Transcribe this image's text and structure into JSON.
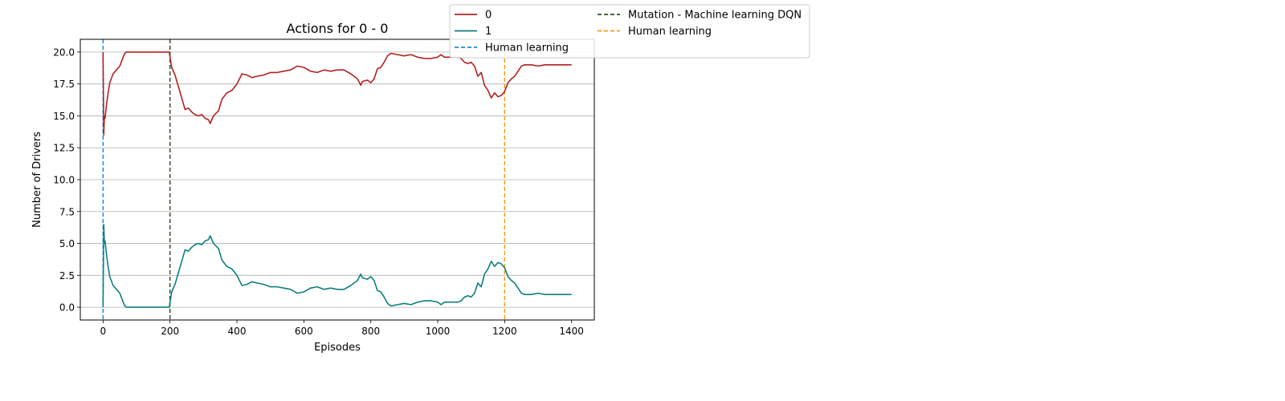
{
  "chart_data": {
    "type": "line",
    "title": "Actions for 0 - 0",
    "xlabel": "Episodes",
    "ylabel": "Number of Drivers",
    "xlim": [
      -68,
      1468
    ],
    "ylim": [
      -1.0,
      21.0
    ],
    "xticks": [
      0,
      200,
      400,
      600,
      800,
      1000,
      1200,
      1400
    ],
    "xtick_labels": [
      "0",
      "200",
      "400",
      "600",
      "800",
      "1000",
      "1200",
      "1400"
    ],
    "yticks": [
      0.0,
      2.5,
      5.0,
      7.5,
      10.0,
      12.5,
      15.0,
      17.5,
      20.0
    ],
    "ytick_labels": [
      "0.0",
      "2.5",
      "5.0",
      "7.5",
      "10.0",
      "12.5",
      "15.0",
      "17.5",
      "20.0"
    ],
    "grid": "horizontal",
    "legend_position": "top-right, outside plot",
    "series": [
      {
        "name": "0",
        "color": "#b22222",
        "x": [
          0,
          2,
          4,
          6,
          10,
          15,
          20,
          30,
          40,
          50,
          60,
          65,
          70,
          80,
          100,
          150,
          198,
          200,
          205,
          215,
          225,
          235,
          245,
          255,
          265,
          275,
          285,
          295,
          305,
          315,
          320,
          330,
          345,
          355,
          370,
          385,
          400,
          415,
          430,
          445,
          460,
          480,
          500,
          520,
          540,
          560,
          580,
          600,
          620,
          640,
          660,
          680,
          700,
          720,
          740,
          760,
          770,
          775,
          790,
          800,
          810,
          820,
          830,
          840,
          850,
          860,
          880,
          900,
          920,
          940,
          960,
          980,
          1000,
          1010,
          1020,
          1040,
          1060,
          1070,
          1080,
          1090,
          1100,
          1110,
          1120,
          1130,
          1140,
          1150,
          1160,
          1170,
          1180,
          1190,
          1200,
          1210,
          1220,
          1230,
          1240,
          1250,
          1260,
          1280,
          1300,
          1320,
          1340,
          1360,
          1380,
          1400
        ],
        "y": [
          20.0,
          13.5,
          15.0,
          14.8,
          15.8,
          16.8,
          17.6,
          18.3,
          18.6,
          18.9,
          19.6,
          19.9,
          20.0,
          20.0,
          20.0,
          20.0,
          20.0,
          19.6,
          18.8,
          18.2,
          17.3,
          16.4,
          15.5,
          15.6,
          15.3,
          15.1,
          15.0,
          15.1,
          14.8,
          14.7,
          14.4,
          15.0,
          15.4,
          16.3,
          16.8,
          17.0,
          17.5,
          18.3,
          18.2,
          18.0,
          18.1,
          18.2,
          18.4,
          18.4,
          18.5,
          18.6,
          18.9,
          18.8,
          18.5,
          18.4,
          18.6,
          18.5,
          18.6,
          18.6,
          18.3,
          17.9,
          17.4,
          17.7,
          17.8,
          17.6,
          17.9,
          18.7,
          18.8,
          19.2,
          19.7,
          19.9,
          19.8,
          19.7,
          19.8,
          19.6,
          19.5,
          19.5,
          19.6,
          19.8,
          19.6,
          19.6,
          19.6,
          19.5,
          19.2,
          19.1,
          19.2,
          18.9,
          18.1,
          18.4,
          17.4,
          17.0,
          16.4,
          16.8,
          16.5,
          16.6,
          16.9,
          17.6,
          17.9,
          18.1,
          18.5,
          18.9,
          19.0,
          19.0,
          18.9,
          19.0,
          19.0,
          19.0,
          19.0,
          19.0
        ]
      },
      {
        "name": "1",
        "color": "#0d7f7f",
        "x": [
          0,
          2,
          4,
          6,
          10,
          15,
          20,
          30,
          40,
          50,
          60,
          65,
          70,
          80,
          100,
          150,
          198,
          200,
          205,
          215,
          225,
          235,
          245,
          255,
          265,
          275,
          285,
          295,
          305,
          315,
          320,
          330,
          345,
          355,
          370,
          385,
          400,
          415,
          430,
          445,
          460,
          480,
          500,
          520,
          540,
          560,
          580,
          600,
          620,
          640,
          660,
          680,
          700,
          720,
          740,
          760,
          770,
          775,
          790,
          800,
          810,
          820,
          830,
          840,
          850,
          860,
          880,
          900,
          920,
          940,
          960,
          980,
          1000,
          1010,
          1020,
          1040,
          1060,
          1070,
          1080,
          1090,
          1100,
          1110,
          1120,
          1130,
          1140,
          1150,
          1160,
          1170,
          1180,
          1190,
          1200,
          1210,
          1220,
          1230,
          1240,
          1250,
          1260,
          1280,
          1300,
          1320,
          1340,
          1360,
          1380,
          1400
        ],
        "y": [
          0.0,
          6.5,
          5.0,
          5.2,
          4.2,
          3.2,
          2.4,
          1.7,
          1.4,
          1.1,
          0.4,
          0.1,
          0.0,
          0.0,
          0.0,
          0.0,
          0.0,
          0.4,
          1.2,
          1.8,
          2.7,
          3.6,
          4.5,
          4.4,
          4.7,
          4.9,
          5.0,
          4.9,
          5.2,
          5.3,
          5.6,
          5.0,
          4.6,
          3.7,
          3.2,
          3.0,
          2.5,
          1.7,
          1.8,
          2.0,
          1.9,
          1.8,
          1.6,
          1.6,
          1.5,
          1.4,
          1.1,
          1.2,
          1.5,
          1.6,
          1.4,
          1.5,
          1.4,
          1.4,
          1.7,
          2.1,
          2.6,
          2.3,
          2.2,
          2.4,
          2.1,
          1.3,
          1.2,
          0.8,
          0.3,
          0.1,
          0.2,
          0.3,
          0.2,
          0.4,
          0.5,
          0.5,
          0.4,
          0.2,
          0.4,
          0.4,
          0.4,
          0.5,
          0.8,
          0.9,
          0.8,
          1.1,
          1.9,
          1.6,
          2.6,
          3.0,
          3.6,
          3.2,
          3.5,
          3.4,
          3.1,
          2.4,
          2.1,
          1.9,
          1.5,
          1.1,
          1.0,
          1.0,
          1.1,
          1.0,
          1.0,
          1.0,
          1.0,
          1.0
        ]
      }
    ],
    "vlines": [
      {
        "x": 0,
        "name": "Human learning",
        "color": "#1e88e5",
        "style": "dashed"
      },
      {
        "x": 200,
        "name": "Mutation - Machine learning DQN",
        "color": "#33502a",
        "style": "dashed"
      },
      {
        "x": 1200,
        "name": "Human learning",
        "color": "#f39c12",
        "style": "dashed"
      }
    ]
  }
}
